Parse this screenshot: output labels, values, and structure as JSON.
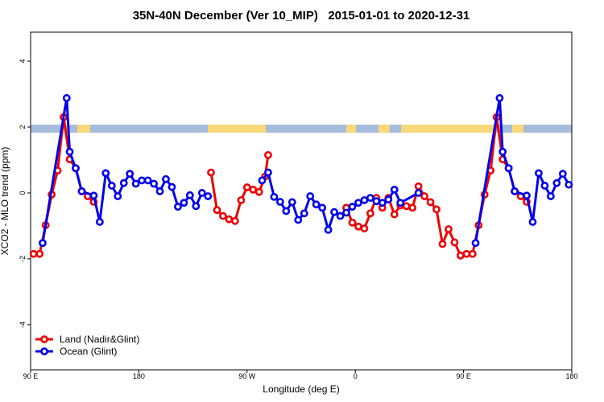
{
  "chart_data": {
    "type": "line",
    "title": "35N-40N December (Ver 10_MIP)   2015-01-01 to 2020-12-31",
    "x_label": "Longitude (deg E)",
    "y_label": "XCO2 - MLO trend (ppm)",
    "xlim": [
      90,
      540
    ],
    "ylim": [
      -5.37,
      4.88
    ],
    "xticks": [
      {
        "value": 90,
        "label": "90 E"
      },
      180,
      {
        "value": 270,
        "label": "90 W"
      },
      {
        "value": 360,
        "label": "0"
      },
      {
        "value": 450,
        "label": "90 E"
      },
      {
        "value": 540,
        "label": "180"
      }
    ],
    "yticks": [
      -4,
      -2,
      0,
      2,
      4
    ],
    "legend": "bottomleft",
    "series": [
      {
        "name": "Land (Nadir&Glint)",
        "color": "#ee0000",
        "x": [
          92.5,
          97.5,
          102.5,
          107.5,
          112.5,
          117.5,
          122.5,
          127.5,
          132.5,
          137.5,
          142.5,
          147.5,
          240,
          245,
          250,
          255,
          260,
          265,
          270,
          275,
          280,
          285,
          287.5,
          292.5,
          352.5,
          357.5,
          362.5,
          367.5,
          372.5,
          377.5,
          382.5,
          387.5,
          392.5,
          397.5,
          402.5,
          407.5,
          412.5,
          417.5,
          422.5,
          427.5,
          432.5,
          437.5,
          442.5,
          447.5,
          452.5,
          457.5,
          462.5,
          467.5,
          472.5,
          477.5,
          482.5,
          487.5,
          492.5,
          497.5,
          502.5
        ],
        "values": [
          -1.85,
          -1.85,
          -0.98,
          -0.05,
          0.68,
          2.3,
          1.02,
          0.75,
          0.05,
          -0.1,
          -0.27,
          null,
          0.62,
          -0.52,
          -0.7,
          -0.8,
          -0.85,
          -0.22,
          0.17,
          0.1,
          0.03,
          0.5,
          1.15,
          null,
          -0.45,
          -0.9,
          -1.02,
          -1.08,
          -0.62,
          -0.15,
          -0.45,
          -0.15,
          -0.65,
          -0.38,
          -0.4,
          -0.45,
          0.2,
          -0.1,
          -0.28,
          -0.5,
          -1.55,
          -1.1,
          -1.5,
          -1.9,
          -1.85,
          -1.85,
          -0.98,
          -0.05,
          0.68,
          2.3,
          1.02,
          0.75,
          0.05,
          -0.1,
          -0.27
        ]
      },
      {
        "name": "Ocean (Glint)",
        "color": "#0000ee",
        "x": [
          100,
          120,
          122.5,
          127.5,
          132.5,
          142.5,
          147.5,
          152.5,
          157.5,
          162.5,
          167.5,
          172.5,
          177.5,
          182.5,
          187.5,
          192.5,
          197.5,
          202.5,
          207.5,
          212.5,
          217.5,
          222.5,
          227.5,
          232.5,
          237.5,
          242.5,
          282.5,
          287.5,
          292.5,
          297.5,
          302.5,
          307.5,
          312.5,
          317.5,
          322.5,
          327.5,
          332.5,
          337.5,
          342.5,
          347.5,
          352.5,
          357.5,
          362.5,
          367.5,
          372.5,
          377.5,
          382.5,
          387.5,
          392.5,
          397.5,
          412.5,
          417.5,
          460,
          480,
          482.5,
          487.5,
          492.5,
          502.5,
          507.5,
          512.5,
          517.5,
          522.5,
          527.5,
          532.5,
          537.5
        ],
        "values": [
          -1.52,
          2.88,
          1.25,
          0.75,
          0.05,
          -0.08,
          -0.88,
          0.6,
          0.22,
          -0.1,
          0.3,
          0.58,
          0.28,
          0.38,
          0.38,
          0.28,
          0.05,
          0.42,
          0.18,
          -0.42,
          -0.3,
          -0.07,
          -0.4,
          0,
          -0.1,
          null,
          0.38,
          0.62,
          -0.12,
          -0.27,
          -0.55,
          -0.28,
          -0.82,
          -0.62,
          -0.1,
          -0.35,
          -0.45,
          -1.12,
          -0.58,
          -0.7,
          -0.6,
          -0.42,
          -0.3,
          -0.22,
          -0.15,
          -0.25,
          -0.3,
          -0.2,
          0.1,
          -0.3,
          0,
          null,
          -1.52,
          2.88,
          1.25,
          0.75,
          0.05,
          -0.08,
          -0.88,
          0.6,
          0.22,
          -0.1,
          0.3,
          0.58,
          0.25
        ]
      }
    ]
  }
}
